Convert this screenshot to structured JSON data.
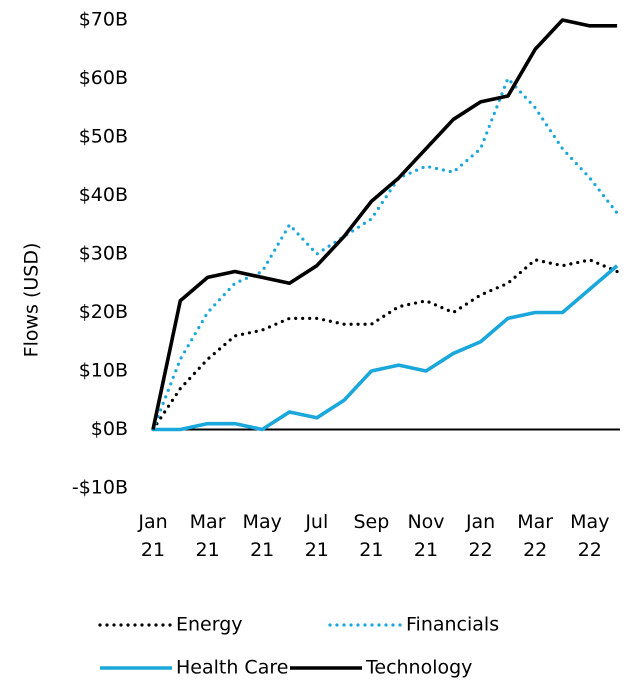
{
  "chart_data": {
    "type": "line",
    "y_label": "Flows (USD)",
    "x": [
      "2021-01",
      "2021-02",
      "2021-03",
      "2021-04",
      "2021-05",
      "2021-06",
      "2021-07",
      "2021-08",
      "2021-09",
      "2021-10",
      "2021-11",
      "2021-12",
      "2022-01",
      "2022-02",
      "2022-03",
      "2022-04",
      "2022-05",
      "2022-06"
    ],
    "xticks": [
      {
        "value": "2021-01",
        "label": "Jan 21"
      },
      {
        "value": "2021-03",
        "label": "Mar 21"
      },
      {
        "value": "2021-05",
        "label": "May 21"
      },
      {
        "value": "2021-07",
        "label": "Jul 21"
      },
      {
        "value": "2021-09",
        "label": "Sep 21"
      },
      {
        "value": "2021-11",
        "label": "Nov 21"
      },
      {
        "value": "2022-01",
        "label": "Jan 22"
      },
      {
        "value": "2022-03",
        "label": "Mar 22"
      },
      {
        "value": "2022-05",
        "label": "May 22"
      }
    ],
    "ylim": [
      -10,
      70
    ],
    "yticks": [
      {
        "value": -10,
        "label": "-$10B"
      },
      {
        "value": 0,
        "label": "$0B"
      },
      {
        "value": 10,
        "label": "$10B"
      },
      {
        "value": 20,
        "label": "$20B"
      },
      {
        "value": 30,
        "label": "$30B"
      },
      {
        "value": 40,
        "label": "$40B"
      },
      {
        "value": 50,
        "label": "$50B"
      },
      {
        "value": 60,
        "label": "$60B"
      },
      {
        "value": 70,
        "label": "$70B"
      }
    ],
    "zero_line": true,
    "legend": "bottom",
    "series": [
      {
        "name": "Energy",
        "color": "#000000",
        "dash": "dotted",
        "values": [
          0,
          7,
          12,
          16,
          17,
          19,
          19,
          18,
          18,
          21,
          22,
          20,
          23,
          25,
          29,
          28,
          29,
          27
        ]
      },
      {
        "name": "Financials",
        "color": "#1aa7dc",
        "dash": "dotted",
        "values": [
          0,
          12,
          20,
          25,
          27,
          35,
          30,
          33,
          36,
          43,
          45,
          44,
          48,
          60,
          55,
          48,
          43,
          37
        ]
      },
      {
        "name": "Health Care",
        "color": "#1aa7dc",
        "dash": "solid",
        "values": [
          0,
          0,
          1,
          1,
          0,
          3,
          2,
          5,
          10,
          11,
          10,
          13,
          15,
          19,
          20,
          20,
          24,
          28
        ]
      },
      {
        "name": "Technology",
        "color": "#000000",
        "dash": "solid",
        "values": [
          0,
          22,
          26,
          27,
          26,
          25,
          28,
          33,
          39,
          43,
          48,
          53,
          56,
          57,
          65,
          70,
          69,
          69
        ]
      }
    ]
  }
}
